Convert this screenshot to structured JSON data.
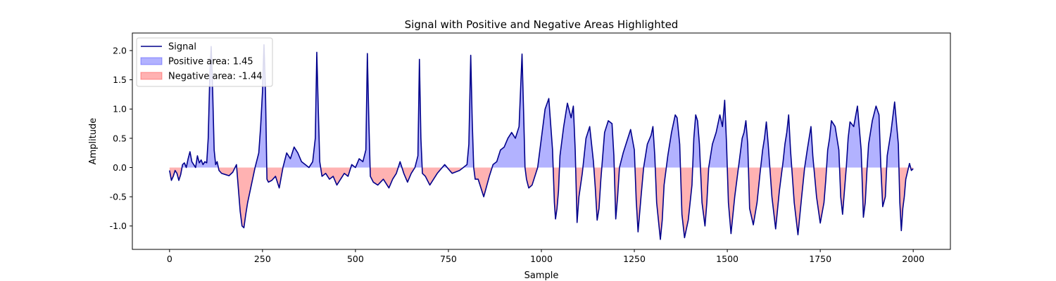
{
  "chart_data": {
    "type": "line",
    "title": "Signal with Positive and Negative Areas Highlighted",
    "xlabel": "Sample",
    "ylabel": "Amplitude",
    "xlim": [
      -100,
      2100
    ],
    "ylim": [
      -1.4,
      2.3
    ],
    "xticks": [
      0,
      250,
      500,
      750,
      1000,
      1250,
      1500,
      1750,
      2000
    ],
    "yticks": [
      -1.0,
      -0.5,
      0.0,
      0.5,
      1.0,
      1.5,
      2.0
    ],
    "grid": false,
    "legend_position": "top-left",
    "legend": [
      {
        "label": "Signal",
        "kind": "line",
        "color": "#00008b"
      },
      {
        "label": "Positive area: 1.45",
        "kind": "patch",
        "color": "#0000ff"
      },
      {
        "label": "Negative area: -1.44",
        "kind": "patch",
        "color": "#ff0000"
      }
    ],
    "colors": {
      "line": "#00008b",
      "positive_fill": "#0000ff",
      "negative_fill": "#ff0000",
      "fill_alpha": 0.3
    },
    "series": [
      {
        "name": "Signal",
        "x": [
          0,
          5,
          10,
          15,
          20,
          25,
          30,
          35,
          40,
          45,
          50,
          55,
          60,
          65,
          70,
          75,
          80,
          85,
          90,
          95,
          100,
          104,
          108,
          112,
          116,
          120,
          124,
          128,
          133,
          140,
          150,
          160,
          170,
          180,
          190,
          195,
          200,
          205,
          210,
          220,
          230,
          240,
          245,
          250,
          254,
          258,
          262,
          266,
          275,
          285,
          295,
          305,
          315,
          325,
          335,
          345,
          355,
          365,
          375,
          385,
          392,
          396,
          400,
          404,
          410,
          420,
          430,
          440,
          450,
          460,
          470,
          480,
          490,
          500,
          510,
          520,
          528,
          532,
          536,
          540,
          548,
          560,
          575,
          590,
          600,
          610,
          620,
          630,
          640,
          650,
          660,
          668,
          672,
          676,
          680,
          688,
          700,
          720,
          740,
          760,
          780,
          790,
          800,
          805,
          810,
          814,
          818,
          822,
          830,
          845,
          860,
          870,
          880,
          890,
          900,
          910,
          920,
          930,
          940,
          948,
          952,
          956,
          960,
          966,
          975,
          990,
          1000,
          1010,
          1020,
          1030,
          1035,
          1038,
          1042,
          1046,
          1050,
          1060,
          1070,
          1080,
          1086,
          1091,
          1096,
          1101,
          1110,
          1120,
          1130,
          1140,
          1145,
          1150,
          1155,
          1160,
          1170,
          1180,
          1190,
          1195,
          1200,
          1205,
          1210,
          1220,
          1230,
          1240,
          1250,
          1255,
          1260,
          1268,
          1275,
          1285,
          1295,
          1300,
          1305,
          1310,
          1320,
          1325,
          1330,
          1340,
          1350,
          1360,
          1365,
          1372,
          1378,
          1385,
          1395,
          1405,
          1410,
          1415,
          1420,
          1425,
          1432,
          1440,
          1445,
          1450,
          1460,
          1470,
          1480,
          1487,
          1493,
          1498,
          1503,
          1510,
          1520,
          1530,
          1540,
          1545,
          1550,
          1555,
          1560,
          1570,
          1580,
          1588,
          1595,
          1600,
          1605,
          1610,
          1620,
          1630,
          1640,
          1650,
          1655,
          1660,
          1665,
          1670,
          1680,
          1690,
          1700,
          1708,
          1715,
          1720,
          1725,
          1730,
          1740,
          1750,
          1760,
          1765,
          1770,
          1775,
          1780,
          1790,
          1800,
          1805,
          1810,
          1815,
          1820,
          1825,
          1830,
          1840,
          1850,
          1860,
          1866,
          1871,
          1876,
          1880,
          1890,
          1900,
          1908,
          1913,
          1918,
          1925,
          1930,
          1940,
          1950,
          1960,
          1964,
          1968,
          1972,
          1976,
          1980,
          1990,
          1995,
          2000
        ],
        "y": [
          -0.05,
          -0.22,
          -0.15,
          -0.05,
          -0.1,
          -0.22,
          -0.12,
          0.05,
          0.08,
          0.0,
          0.15,
          0.27,
          0.1,
          0.05,
          0.0,
          0.2,
          0.08,
          0.13,
          0.05,
          0.1,
          0.08,
          0.5,
          1.5,
          2.07,
          1.3,
          0.3,
          0.05,
          0.1,
          -0.05,
          -0.1,
          -0.12,
          -0.14,
          -0.08,
          0.05,
          -0.75,
          -1.0,
          -1.03,
          -0.8,
          -0.6,
          -0.3,
          0.0,
          0.25,
          0.7,
          1.3,
          2.1,
          1.3,
          -0.2,
          -0.25,
          -0.22,
          -0.15,
          -0.35,
          0.0,
          0.25,
          0.15,
          0.35,
          0.25,
          0.1,
          0.05,
          0.0,
          0.1,
          0.5,
          1.97,
          1.0,
          0.1,
          -0.15,
          -0.1,
          -0.2,
          -0.15,
          -0.3,
          -0.2,
          -0.1,
          -0.15,
          0.05,
          0.0,
          0.15,
          0.1,
          0.3,
          1.95,
          0.8,
          -0.15,
          -0.25,
          -0.3,
          -0.2,
          -0.35,
          -0.2,
          -0.1,
          0.1,
          -0.1,
          -0.25,
          -0.1,
          0.0,
          0.2,
          1.85,
          0.5,
          -0.1,
          -0.15,
          -0.3,
          -0.1,
          0.05,
          -0.1,
          -0.05,
          0.0,
          0.05,
          0.4,
          1.92,
          0.8,
          0.0,
          -0.2,
          -0.2,
          -0.5,
          -0.15,
          0.05,
          0.1,
          0.3,
          0.35,
          0.5,
          0.6,
          0.5,
          0.7,
          1.94,
          1.0,
          0.0,
          -0.2,
          -0.35,
          -0.3,
          0.0,
          0.5,
          1.0,
          1.18,
          0.3,
          -0.6,
          -0.88,
          -0.7,
          -0.4,
          0.2,
          0.7,
          1.1,
          0.85,
          1.05,
          0.3,
          -0.94,
          -0.5,
          -0.1,
          0.5,
          0.7,
          0.1,
          -0.35,
          -0.9,
          -0.7,
          -0.2,
          0.6,
          0.8,
          0.75,
          0.2,
          -0.88,
          -0.5,
          0.0,
          0.25,
          0.45,
          0.65,
          0.3,
          -0.55,
          -1.1,
          -0.5,
          0.0,
          0.4,
          0.55,
          0.7,
          0.2,
          -0.6,
          -1.23,
          -0.9,
          -0.3,
          0.2,
          0.6,
          0.9,
          0.85,
          0.4,
          -0.8,
          -1.2,
          -0.9,
          -0.3,
          0.5,
          0.9,
          0.8,
          0.4,
          -0.6,
          -1.0,
          -0.6,
          0.0,
          0.4,
          0.6,
          0.9,
          0.7,
          1.15,
          0.4,
          -0.6,
          -1.13,
          -0.5,
          0.0,
          0.5,
          0.6,
          0.8,
          0.4,
          -0.7,
          -0.98,
          -0.6,
          -0.1,
          0.3,
          0.5,
          0.78,
          0.4,
          -0.5,
          -1.05,
          -0.4,
          0.1,
          0.4,
          0.6,
          0.9,
          0.3,
          -0.6,
          -1.15,
          -0.5,
          0.0,
          0.3,
          0.5,
          0.7,
          0.2,
          -0.5,
          -0.95,
          -0.6,
          -0.2,
          0.3,
          0.5,
          0.8,
          0.7,
          0.3,
          -0.5,
          -0.8,
          -0.4,
          0.0,
          0.5,
          0.78,
          0.7,
          1.05,
          0.3,
          -0.85,
          -0.6,
          0.0,
          0.4,
          0.8,
          1.05,
          0.9,
          0.0,
          -0.67,
          -0.5,
          0.2,
          0.6,
          1.12,
          0.4,
          -0.6,
          -1.08,
          -0.7,
          -0.5,
          -0.2,
          0.07,
          -0.05,
          -0.02
        ]
      }
    ]
  }
}
